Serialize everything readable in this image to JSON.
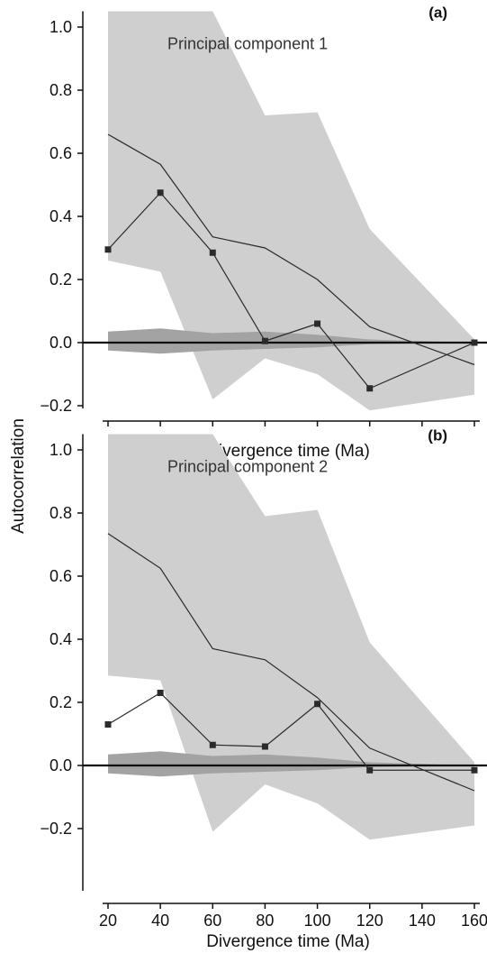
{
  "figure": {
    "shared_ylabel": "Autocorrelation"
  },
  "chart_data": [
    {
      "type": "line",
      "panel_label": "(a)",
      "annotation": "Principal component 1",
      "xlabel": "Divergence time (Ma)",
      "ylabel": "Autocorrelation",
      "x_ticks": [
        20,
        40,
        60,
        80,
        100,
        120,
        140,
        160
      ],
      "x_tick_labels_shown": false,
      "y_ticks": [
        -0.2,
        0.0,
        0.2,
        0.4,
        0.6,
        0.8,
        1.0
      ],
      "y_tick_labels": [
        "−0.2",
        "0.0",
        "0.2",
        "0.4",
        "0.6",
        "0.8",
        "1.0"
      ],
      "xlim": [
        15,
        170
      ],
      "ylim": [
        -0.25,
        1.05
      ],
      "grid": false,
      "x": [
        20,
        40,
        60,
        80,
        100,
        120,
        160
      ],
      "observed": [
        0.295,
        0.475,
        0.285,
        0.005,
        0.06,
        -0.145,
        0.0
      ],
      "expected": [
        0.66,
        0.565,
        0.335,
        0.3,
        0.2,
        0.05,
        -0.07
      ],
      "ci_upper": [
        1.05,
        1.05,
        1.05,
        0.72,
        0.73,
        0.36,
        0.01
      ],
      "ci_lower": [
        0.26,
        0.225,
        -0.18,
        -0.05,
        -0.1,
        -0.215,
        -0.165
      ],
      "null_upper": [
        0.035,
        0.045,
        0.03,
        0.035,
        0.025,
        0.01,
        0.0
      ],
      "null_lower": [
        -0.025,
        -0.035,
        -0.025,
        -0.02,
        -0.015,
        -0.005,
        0.0
      ],
      "colors": {
        "ci_band": "#cfcfcf",
        "null_band": "#a3a3a3",
        "line": "#2b2b2b",
        "marker": "#2b2b2b",
        "zero_line": "#111111"
      }
    },
    {
      "type": "line",
      "panel_label": "(b)",
      "annotation": "Principal component 2",
      "xlabel": "Divergence time (Ma)",
      "ylabel": "Autocorrelation",
      "x_ticks": [
        20,
        40,
        60,
        80,
        100,
        120,
        140,
        160
      ],
      "x_tick_labels": [
        "20",
        "40",
        "60",
        "80",
        "100",
        "120",
        "140",
        "160"
      ],
      "y_ticks": [
        -0.2,
        0.0,
        0.2,
        0.4,
        0.6,
        0.8,
        1.0
      ],
      "y_tick_labels": [
        "−0.2",
        "0.0",
        "0.2",
        "0.4",
        "0.6",
        "0.8",
        "1.0"
      ],
      "xlim": [
        15,
        170
      ],
      "ylim": [
        -0.25,
        1.05
      ],
      "grid": false,
      "x": [
        20,
        40,
        60,
        80,
        100,
        120,
        160
      ],
      "observed": [
        0.13,
        0.23,
        0.065,
        0.06,
        0.195,
        -0.015,
        -0.015
      ],
      "expected": [
        0.735,
        0.625,
        0.37,
        0.335,
        0.215,
        0.055,
        -0.08
      ],
      "ci_upper": [
        1.05,
        1.05,
        1.05,
        0.79,
        0.81,
        0.39,
        0.01
      ],
      "ci_lower": [
        0.285,
        0.27,
        -0.21,
        -0.06,
        -0.12,
        -0.235,
        -0.19
      ],
      "null_upper": [
        0.035,
        0.045,
        0.03,
        0.035,
        0.025,
        0.01,
        0.0
      ],
      "null_lower": [
        -0.025,
        -0.035,
        -0.025,
        -0.02,
        -0.015,
        -0.005,
        0.0
      ],
      "colors": {
        "ci_band": "#cfcfcf",
        "null_band": "#a3a3a3",
        "line": "#2b2b2b",
        "marker": "#2b2b2b",
        "zero_line": "#111111"
      }
    }
  ]
}
